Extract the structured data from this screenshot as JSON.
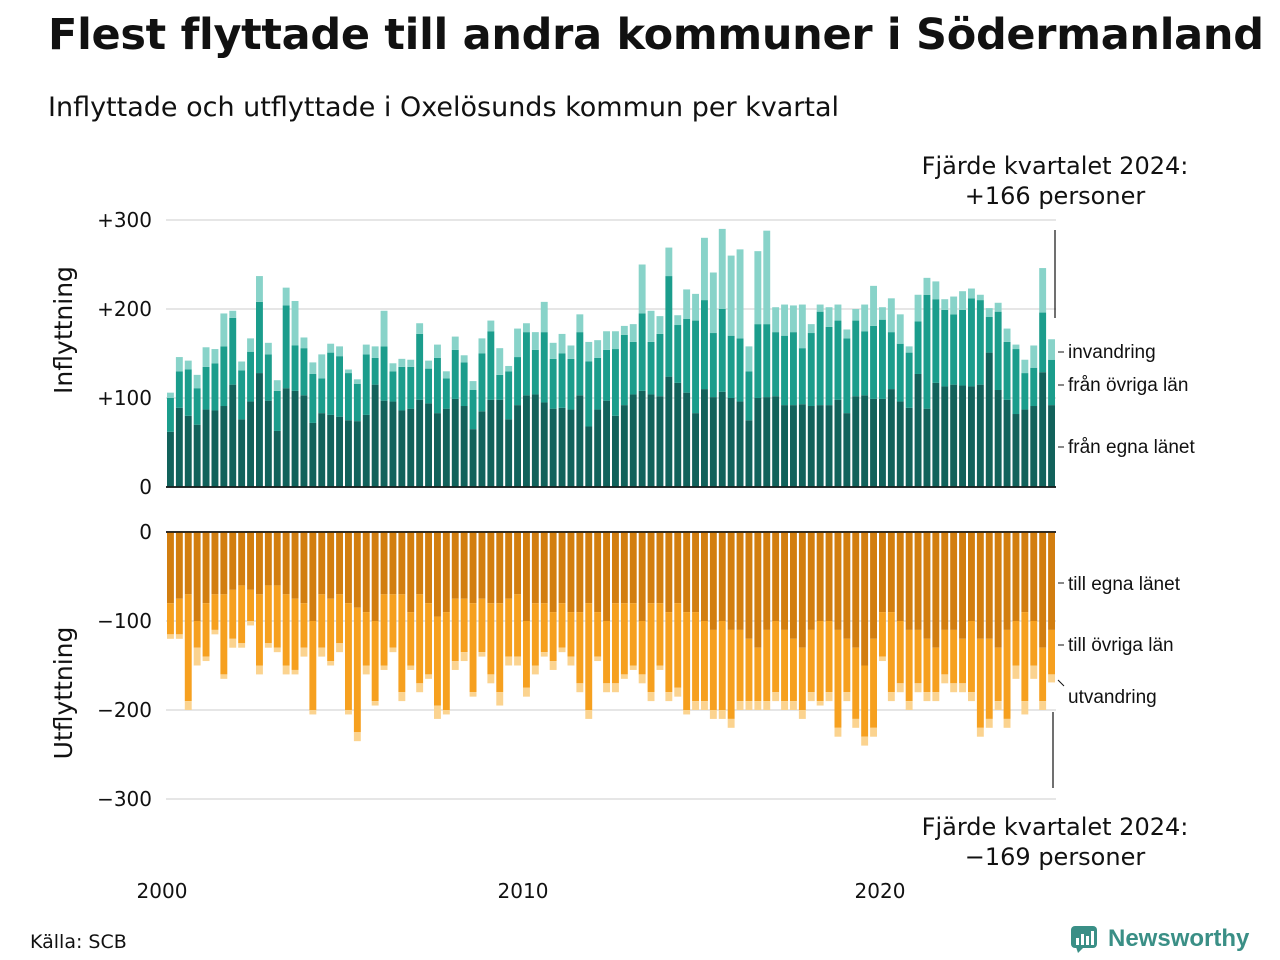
{
  "title": "Flest flyttade till andra kommuner i Södermanland",
  "subtitle": "Inflyttade och utflyttade i Oxelösunds kommun per kvartal",
  "source": "Källa: SCB",
  "brand": "Newsworthy",
  "colors": {
    "in_own": "#12625b",
    "in_other": "#1b9d8c",
    "in_immig": "#88d3c9",
    "out_own": "#d27e10",
    "out_other": "#f6a01f",
    "out_emig": "#fbd38f",
    "grid": "#dddddd",
    "brand": "#3a8f86"
  },
  "chart_data": {
    "type": "bar",
    "stacked": true,
    "x_start": "2000 Q1",
    "x_tick_labels": [
      "2000",
      "2010",
      "2020"
    ],
    "top_panel": {
      "ylabel": "Inflyttning",
      "ylim": [
        0,
        300
      ],
      "yticks": [
        "0",
        "+100",
        "+200",
        "+300"
      ],
      "series": [
        {
          "name": "från egna länet",
          "values": [
            62,
            89,
            80,
            70,
            87,
            86,
            91,
            115,
            76,
            96,
            128,
            97,
            63,
            111,
            108,
            103,
            72,
            83,
            81,
            79,
            75,
            74,
            81,
            115,
            97,
            96,
            86,
            88,
            98,
            94,
            83,
            88,
            99,
            91,
            65,
            85,
            98,
            98,
            76,
            92,
            103,
            104,
            95,
            88,
            89,
            87,
            103,
            68,
            87,
            97,
            80,
            92,
            104,
            108,
            104,
            102,
            124,
            117,
            106,
            83,
            110,
            101,
            107,
            100,
            96,
            75,
            100,
            101,
            102,
            92,
            92,
            93,
            91,
            92,
            92,
            98,
            83,
            102,
            103,
            99,
            99,
            110,
            96,
            89,
            127,
            88,
            117,
            113,
            115,
            114,
            113,
            115,
            151,
            109,
            98,
            82,
            87,
            91,
            129,
            92
          ]
        },
        {
          "name": "från övriga län",
          "values": [
            38,
            41,
            52,
            41,
            48,
            53,
            67,
            75,
            55,
            56,
            80,
            52,
            45,
            93,
            51,
            53,
            55,
            39,
            70,
            68,
            53,
            42,
            68,
            30,
            61,
            34,
            49,
            47,
            74,
            39,
            62,
            34,
            55,
            49,
            44,
            65,
            77,
            28,
            54,
            54,
            71,
            50,
            79,
            56,
            61,
            57,
            71,
            73,
            58,
            57,
            75,
            79,
            59,
            87,
            59,
            70,
            113,
            65,
            83,
            104,
            100,
            72,
            93,
            70,
            71,
            55,
            83,
            82,
            72,
            78,
            82,
            63,
            82,
            105,
            88,
            89,
            84,
            85,
            72,
            82,
            89,
            64,
            65,
            62,
            59,
            128,
            94,
            86,
            79,
            85,
            99,
            95,
            40,
            88,
            65,
            73,
            41,
            43,
            67,
            51
          ]
        },
        {
          "name": "invandring",
          "values": [
            6,
            16,
            10,
            15,
            22,
            16,
            37,
            8,
            10,
            15,
            29,
            13,
            12,
            20,
            50,
            12,
            13,
            27,
            10,
            11,
            4,
            5,
            11,
            13,
            40,
            9,
            9,
            8,
            12,
            9,
            15,
            8,
            15,
            8,
            10,
            17,
            12,
            30,
            6,
            32,
            10,
            20,
            34,
            18,
            22,
            15,
            20,
            22,
            20,
            21,
            20,
            10,
            20,
            55,
            35,
            20,
            32,
            11,
            33,
            30,
            70,
            68,
            90,
            90,
            100,
            28,
            82,
            105,
            28,
            35,
            30,
            49,
            10,
            8,
            22,
            18,
            10,
            13,
            30,
            45,
            14,
            38,
            33,
            7,
            30,
            19,
            20,
            12,
            20,
            21,
            11,
            6,
            10,
            10,
            15,
            5,
            15,
            25,
            50,
            23
          ]
        }
      ]
    },
    "bottom_panel": {
      "ylabel": "Utflyttning",
      "ylim": [
        -300,
        0
      ],
      "yticks": [
        "0",
        "−100",
        "−200",
        "−300"
      ],
      "series": [
        {
          "name": "till egna länet",
          "values": [
            -80,
            -75,
            -70,
            -100,
            -80,
            -70,
            -70,
            -65,
            -60,
            -65,
            -70,
            -60,
            -60,
            -70,
            -75,
            -80,
            -100,
            -70,
            -75,
            -70,
            -80,
            -85,
            -90,
            -100,
            -70,
            -70,
            -70,
            -90,
            -70,
            -80,
            -95,
            -90,
            -75,
            -75,
            -80,
            -75,
            -80,
            -80,
            -75,
            -70,
            -100,
            -80,
            -80,
            -90,
            -80,
            -90,
            -90,
            -80,
            -90,
            -100,
            -80,
            -80,
            -80,
            -100,
            -80,
            -80,
            -90,
            -80,
            -90,
            -90,
            -100,
            -110,
            -100,
            -110,
            -110,
            -120,
            -130,
            -110,
            -100,
            -110,
            -120,
            -130,
            -110,
            -100,
            -100,
            -110,
            -120,
            -130,
            -150,
            -120,
            -90,
            -90,
            -100,
            -110,
            -110,
            -120,
            -130,
            -110,
            -110,
            -120,
            -100,
            -120,
            -120,
            -130,
            -110,
            -100,
            -90,
            -100,
            -130,
            -110
          ]
        },
        {
          "name": "till övriga län",
          "values": [
            -35,
            -40,
            -120,
            -30,
            -60,
            -40,
            -90,
            -55,
            -65,
            -35,
            -80,
            -65,
            -70,
            -80,
            -80,
            -50,
            -100,
            -60,
            -70,
            -55,
            -120,
            -140,
            -60,
            -90,
            -80,
            -60,
            -110,
            -60,
            -100,
            -80,
            -100,
            -110,
            -70,
            -60,
            -100,
            -60,
            -80,
            -100,
            -65,
            -70,
            -75,
            -70,
            -55,
            -55,
            -50,
            -50,
            -80,
            -120,
            -50,
            -70,
            -90,
            -80,
            -70,
            -60,
            -100,
            -70,
            -90,
            -95,
            -110,
            -100,
            -90,
            -90,
            -100,
            -100,
            -80,
            -70,
            -60,
            -80,
            -80,
            -80,
            -70,
            -70,
            -70,
            -90,
            -80,
            -110,
            -60,
            -80,
            -80,
            -100,
            -50,
            -90,
            -70,
            -80,
            -60,
            -60,
            -50,
            -50,
            -60,
            -50,
            -80,
            -100,
            -90,
            -60,
            -100,
            -50,
            -100,
            -50,
            -60,
            -50
          ]
        },
        {
          "name": "utvandring",
          "values": [
            -5,
            -5,
            -10,
            -20,
            -5,
            -5,
            -5,
            -10,
            -5,
            -5,
            -10,
            -5,
            -5,
            -10,
            -5,
            -10,
            -5,
            -10,
            -5,
            -10,
            -5,
            -10,
            -10,
            -5,
            -5,
            -5,
            -10,
            -5,
            -10,
            -5,
            -15,
            -5,
            -10,
            -10,
            -5,
            -5,
            -10,
            -15,
            -10,
            -10,
            -10,
            -10,
            -5,
            -10,
            -5,
            -10,
            -10,
            -10,
            -5,
            -10,
            -10,
            -5,
            -5,
            -10,
            -10,
            -5,
            -10,
            -10,
            -5,
            -10,
            -10,
            -10,
            -10,
            -10,
            -10,
            -10,
            -10,
            -10,
            -10,
            -10,
            -10,
            -10,
            -10,
            -5,
            -10,
            -10,
            -10,
            -10,
            -10,
            -10,
            -5,
            -10,
            -10,
            -10,
            -10,
            -10,
            -10,
            -10,
            -10,
            -10,
            -10,
            -10,
            -10,
            -10,
            -10,
            -15,
            -15,
            -15,
            -10,
            -9
          ]
        }
      ]
    },
    "annotations": {
      "top": {
        "heading": "Fjärde kvartalet 2024:",
        "value": "+166 personer"
      },
      "bottom": {
        "heading": "Fjärde kvartalet 2024:",
        "value": "−169 personer"
      }
    },
    "grid": true,
    "legend": "right-direct-labels"
  }
}
